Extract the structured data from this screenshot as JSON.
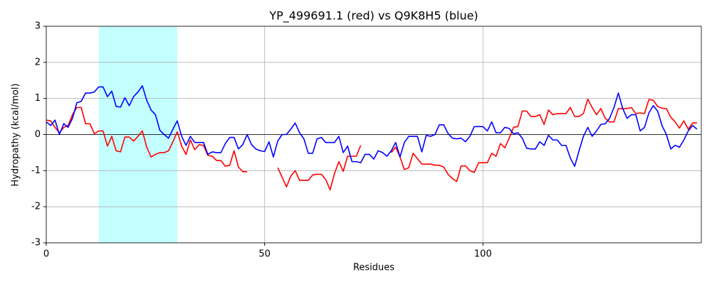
{
  "chart_data": {
    "type": "line",
    "title": "YP_499691.1 (red) vs Q9K8H5 (blue)",
    "x_label": "Residues",
    "y_label": "Hydropathy (kcal/mol)",
    "x": [
      0,
      1,
      2,
      3,
      4,
      5,
      6,
      7,
      8,
      9,
      10,
      11,
      12,
      13,
      14,
      15,
      16,
      17,
      18,
      19,
      20,
      21,
      22,
      23,
      24,
      25,
      26,
      27,
      28,
      29,
      30,
      31,
      32,
      33,
      34,
      35,
      36,
      37,
      38,
      39,
      40,
      41,
      42,
      43,
      44,
      45,
      46,
      47,
      48,
      49,
      50,
      51,
      52,
      53,
      54,
      55,
      56,
      57,
      58,
      59,
      60,
      61,
      62,
      63,
      64,
      65,
      66,
      67,
      68,
      69,
      70,
      71,
      72,
      73,
      74,
      75,
      76,
      77,
      78,
      79,
      80,
      81,
      82,
      83,
      84,
      85,
      86,
      87,
      88,
      89,
      90,
      91,
      92,
      93,
      94,
      95,
      96,
      97,
      98,
      99,
      100,
      101,
      102,
      103,
      104,
      105,
      106,
      107,
      108,
      109,
      110,
      111,
      112,
      113,
      114,
      115,
      116,
      117,
      118,
      119,
      120,
      121,
      122,
      123,
      124,
      125,
      126,
      127,
      128,
      129,
      130,
      131,
      132,
      133,
      134,
      135,
      136,
      137,
      138,
      139,
      140,
      141,
      142,
      143,
      144,
      145,
      146,
      147,
      148,
      149
    ],
    "series": [
      {
        "color": "#ff0000",
        "values": [
          0.4,
          0.38,
          0.2,
          0.05,
          0.2,
          0.25,
          0.55,
          0.75,
          0.75,
          0.3,
          0.3,
          0.02,
          0.1,
          0.1,
          -0.32,
          -0.05,
          -0.45,
          -0.48,
          -0.07,
          -0.07,
          -0.18,
          -0.05,
          0.1,
          -0.35,
          -0.62,
          -0.55,
          -0.5,
          -0.5,
          -0.45,
          -0.2,
          0.08,
          -0.32,
          -0.55,
          -0.15,
          -0.42,
          -0.28,
          -0.3,
          -0.58,
          -0.6,
          -0.72,
          -0.72,
          -0.88,
          -0.85,
          -0.45,
          -0.9,
          -1.03,
          -1.03,
          null,
          null,
          null,
          null,
          null,
          null,
          -0.92,
          -1.18,
          -1.45,
          -1.15,
          -1.0,
          -1.27,
          -1.27,
          -1.27,
          -1.12,
          -1.1,
          -1.1,
          -1.25,
          -1.53,
          -1.08,
          -0.75,
          -1.02,
          -0.6,
          -0.6,
          -0.6,
          -0.3,
          null,
          null,
          null,
          null,
          null,
          null,
          -0.5,
          -0.35,
          -0.62,
          -0.97,
          -0.92,
          -0.52,
          -0.67,
          -0.82,
          -0.82,
          -0.82,
          -0.85,
          -0.85,
          -0.9,
          -1.1,
          -1.22,
          -1.3,
          -0.87,
          -0.87,
          -1.0,
          -1.05,
          -0.78,
          -0.78,
          -0.78,
          -0.52,
          -0.6,
          -0.25,
          -0.37,
          -0.1,
          0.2,
          0.22,
          0.65,
          0.65,
          0.5,
          0.5,
          0.55,
          0.28,
          0.68,
          0.55,
          0.58,
          0.58,
          0.58,
          0.75,
          0.5,
          0.5,
          0.58,
          0.98,
          0.75,
          0.55,
          0.72,
          0.45,
          0.35,
          0.35,
          0.72,
          0.72,
          0.72,
          0.75,
          0.58,
          0.6,
          0.58,
          0.97,
          0.95,
          0.78,
          0.73,
          0.72,
          0.48,
          0.35,
          0.18,
          0.38,
          0.15,
          0.32,
          0.32
        ]
      },
      {
        "color": "#0000ff",
        "values": [
          0.35,
          0.25,
          0.4,
          0.0,
          0.3,
          0.2,
          0.45,
          0.88,
          0.92,
          1.15,
          1.15,
          1.18,
          1.32,
          1.32,
          1.05,
          1.2,
          0.78,
          0.76,
          1.02,
          0.8,
          1.05,
          1.18,
          1.35,
          0.95,
          0.68,
          0.55,
          0.12,
          0.0,
          -0.1,
          0.15,
          0.38,
          -0.05,
          -0.3,
          -0.05,
          -0.22,
          -0.22,
          -0.22,
          -0.55,
          -0.48,
          -0.5,
          -0.5,
          -0.25,
          -0.08,
          -0.08,
          -0.4,
          -0.28,
          0.0,
          -0.28,
          -0.4,
          -0.45,
          -0.47,
          -0.2,
          -0.62,
          -0.18,
          0.0,
          0.0,
          0.15,
          0.32,
          0.05,
          -0.12,
          -0.52,
          -0.52,
          -0.12,
          -0.08,
          -0.22,
          -0.22,
          -0.22,
          -0.05,
          -0.5,
          -0.32,
          -0.75,
          -0.75,
          -0.78,
          -0.55,
          -0.55,
          -0.68,
          -0.45,
          -0.5,
          -0.6,
          -0.45,
          -0.22,
          -0.62,
          -0.22,
          -0.05,
          -0.05,
          -0.05,
          -0.48,
          -0.02,
          -0.05,
          0.0,
          0.27,
          0.27,
          0.03,
          -0.1,
          -0.12,
          -0.1,
          -0.2,
          -0.05,
          0.22,
          0.22,
          0.22,
          0.1,
          0.35,
          0.05,
          0.05,
          0.2,
          0.17,
          0.02,
          0.05,
          -0.1,
          -0.38,
          -0.4,
          -0.4,
          -0.2,
          -0.3,
          -0.02,
          -0.15,
          -0.15,
          -0.3,
          -0.3,
          -0.65,
          -0.88,
          -0.45,
          -0.05,
          0.2,
          -0.05,
          0.1,
          0.28,
          0.3,
          0.45,
          0.75,
          1.15,
          0.72,
          0.45,
          0.55,
          0.55,
          0.1,
          0.2,
          0.6,
          0.8,
          0.65,
          0.25,
          0.0,
          -0.4,
          -0.3,
          -0.35,
          -0.15,
          0.1,
          0.25,
          0.15
        ]
      }
    ],
    "shaded_region": {
      "x": [
        12,
        30
      ],
      "color": "#c4ffff"
    },
    "xlim": [
      0,
      150
    ],
    "ylim": [
      -3,
      3
    ],
    "xticks": [
      0,
      50,
      100
    ],
    "yticks": [
      -3,
      -2,
      -1,
      0,
      1,
      2,
      3
    ],
    "grid": true,
    "zero_line": 0
  }
}
